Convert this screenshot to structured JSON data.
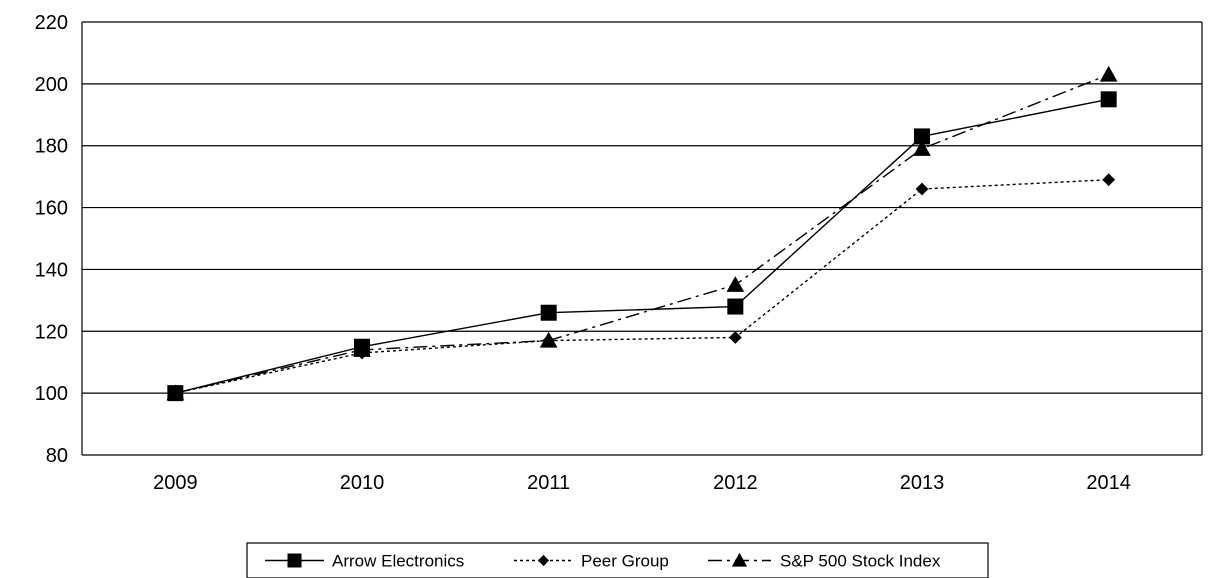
{
  "chart_data": {
    "type": "line",
    "title": "",
    "xlabel": "",
    "ylabel": "",
    "categories": [
      "2009",
      "2010",
      "2011",
      "2012",
      "2013",
      "2014"
    ],
    "ylim": [
      80,
      220
    ],
    "yticks": [
      80,
      100,
      120,
      140,
      160,
      180,
      200,
      220
    ],
    "grid": true,
    "legend_position": "bottom",
    "series": [
      {
        "name": "Arrow Electronics",
        "values": [
          100,
          115,
          126,
          128,
          183,
          195
        ],
        "marker": "square",
        "line": "solid",
        "color": "#000000"
      },
      {
        "name": "Peer Group",
        "values": [
          100,
          113,
          117,
          118,
          166,
          169
        ],
        "marker": "diamond",
        "line": "dotted",
        "color": "#000000"
      },
      {
        "name": "S&P 500 Stock Index",
        "values": [
          100,
          114,
          117,
          135,
          179,
          203
        ],
        "marker": "triangle",
        "line": "dash-dot",
        "color": "#000000"
      }
    ]
  }
}
